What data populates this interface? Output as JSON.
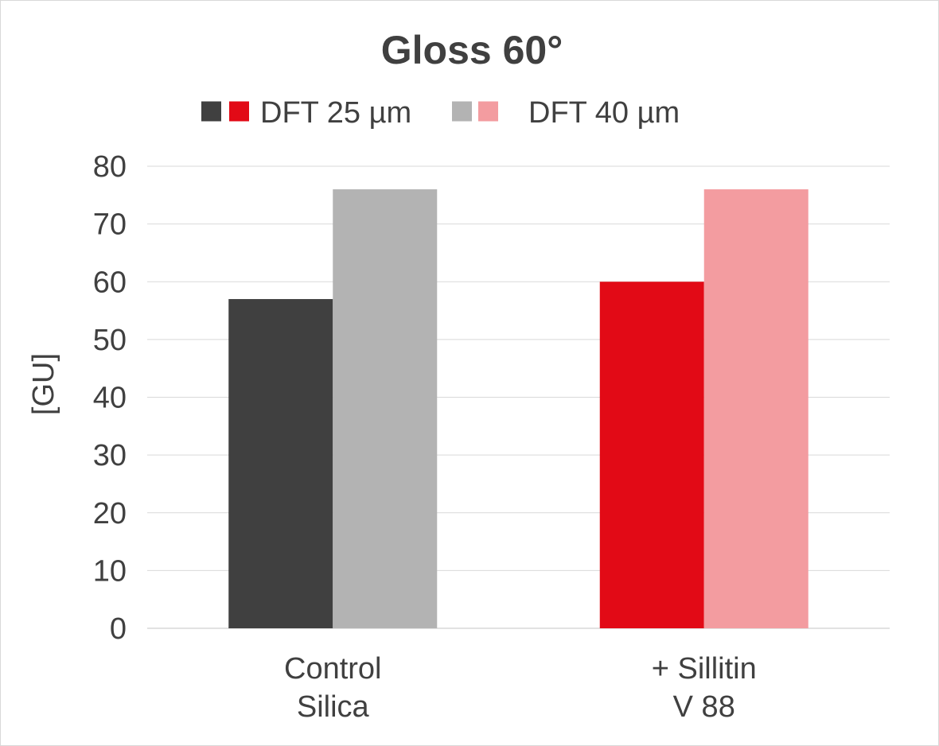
{
  "chart_data": {
    "type": "bar",
    "title": "Gloss 60°",
    "ylabel": "[GU]",
    "xlabel": "",
    "ylim": [
      0,
      80
    ],
    "yticks": [
      0,
      10,
      20,
      30,
      40,
      50,
      60,
      70,
      80
    ],
    "grid": true,
    "legend_position": "top",
    "categories": [
      [
        "Control",
        "Silica"
      ],
      [
        "+ Sillitin",
        "V 88"
      ]
    ],
    "legend": [
      {
        "label": "DFT 25 µm",
        "colors": [
          "#404040",
          "#e20a16"
        ]
      },
      {
        "label": "DFT 40 µm",
        "colors": [
          "#b3b3b3",
          "#f39ca0"
        ]
      }
    ],
    "series": [
      {
        "name": "DFT 25 µm",
        "values": [
          57,
          60
        ],
        "colors": [
          "#404040",
          "#e20a16"
        ]
      },
      {
        "name": "DFT 40 µm",
        "values": [
          76,
          76
        ],
        "colors": [
          "#b3b3b3",
          "#f39ca0"
        ]
      }
    ]
  }
}
